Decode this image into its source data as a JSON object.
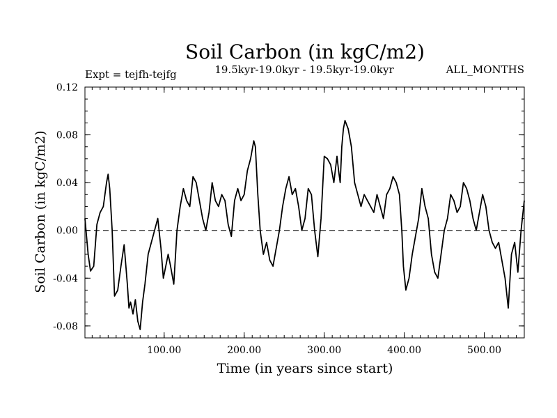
{
  "chart_data": {
    "type": "line",
    "title": "Soil Carbon (in kgC/m2)",
    "subtitle": "19.5kyr-19.0kyr - 19.5kyr-19.0kyr",
    "experiment": "Expt = tejfh-tejfg",
    "months": "ALL_MONTHS",
    "xlabel": "Time (in years since start)",
    "ylabel": "Soil Carbon (in kgC/m2)",
    "xlim": [
      1,
      550
    ],
    "ylim": [
      -0.09,
      0.12
    ],
    "xticks": [
      100,
      200,
      300,
      400,
      500
    ],
    "xtick_labels": [
      "100.00",
      "200.00",
      "300.00",
      "400.00",
      "500.00"
    ],
    "yticks": [
      -0.08,
      -0.04,
      0.0,
      0.04,
      0.08,
      0.12
    ],
    "ytick_labels": [
      "-0.08",
      "-0.04",
      "0.00",
      "0.04",
      "0.08",
      "0.12"
    ],
    "reference_line": 0.0,
    "series": [
      {
        "name": "tejfh-tejfg",
        "x": [
          1,
          5,
          8,
          12,
          16,
          20,
          24,
          28,
          30,
          32,
          35,
          38,
          42,
          46,
          50,
          54,
          56,
          58,
          61,
          64,
          67,
          70,
          73,
          76,
          80,
          84,
          88,
          92,
          96,
          99,
          102,
          105,
          108,
          112,
          116,
          120,
          124,
          128,
          132,
          136,
          140,
          144,
          148,
          152,
          156,
          160,
          164,
          168,
          172,
          176,
          180,
          184,
          188,
          192,
          196,
          200,
          204,
          208,
          212,
          214,
          217,
          220,
          224,
          228,
          232,
          236,
          240,
          244,
          248,
          252,
          256,
          260,
          264,
          268,
          272,
          276,
          280,
          284,
          288,
          292,
          296,
          300,
          304,
          308,
          312,
          316,
          318,
          320,
          322,
          324,
          326,
          330,
          334,
          338,
          342,
          346,
          350,
          354,
          358,
          362,
          366,
          370,
          374,
          378,
          382,
          386,
          390,
          394,
          397,
          399,
          402,
          406,
          410,
          414,
          418,
          422,
          426,
          430,
          434,
          438,
          442,
          446,
          450,
          454,
          458,
          462,
          466,
          470,
          474,
          478,
          482,
          486,
          490,
          494,
          498,
          502,
          506,
          510,
          514,
          518,
          522,
          526,
          530,
          534,
          538,
          542,
          546,
          550
        ],
        "values": [
          0.01,
          -0.02,
          -0.034,
          -0.03,
          0.005,
          0.015,
          0.02,
          0.04,
          0.047,
          0.035,
          0.0,
          -0.055,
          -0.05,
          -0.03,
          -0.012,
          -0.045,
          -0.065,
          -0.06,
          -0.07,
          -0.058,
          -0.076,
          -0.083,
          -0.06,
          -0.045,
          -0.02,
          -0.01,
          0.0,
          0.01,
          -0.015,
          -0.04,
          -0.03,
          -0.02,
          -0.03,
          -0.045,
          0.0,
          0.02,
          0.035,
          0.025,
          0.02,
          0.045,
          0.04,
          0.025,
          0.01,
          0.0,
          0.015,
          0.04,
          0.025,
          0.02,
          0.03,
          0.025,
          0.005,
          -0.005,
          0.025,
          0.035,
          0.025,
          0.03,
          0.05,
          0.06,
          0.075,
          0.07,
          0.03,
          0.0,
          -0.02,
          -0.01,
          -0.025,
          -0.03,
          -0.015,
          0.0,
          0.02,
          0.035,
          0.045,
          0.03,
          0.035,
          0.02,
          0.0,
          0.01,
          0.035,
          0.03,
          0.0,
          -0.022,
          0.01,
          0.062,
          0.06,
          0.055,
          0.04,
          0.062,
          0.05,
          0.04,
          0.07,
          0.085,
          0.092,
          0.085,
          0.07,
          0.04,
          0.03,
          0.02,
          0.03,
          0.025,
          0.02,
          0.015,
          0.03,
          0.02,
          0.01,
          0.03,
          0.035,
          0.045,
          0.04,
          0.03,
          0.0,
          -0.03,
          -0.05,
          -0.04,
          -0.02,
          -0.005,
          0.01,
          0.035,
          0.02,
          0.01,
          -0.02,
          -0.035,
          -0.04,
          -0.02,
          0.0,
          0.01,
          0.03,
          0.025,
          0.015,
          0.02,
          0.04,
          0.035,
          0.025,
          0.01,
          0.0,
          0.015,
          0.03,
          0.02,
          0.0,
          -0.01,
          -0.015,
          -0.01,
          -0.025,
          -0.04,
          -0.065,
          -0.02,
          -0.01,
          -0.035,
          0.0,
          0.025
        ]
      }
    ]
  }
}
